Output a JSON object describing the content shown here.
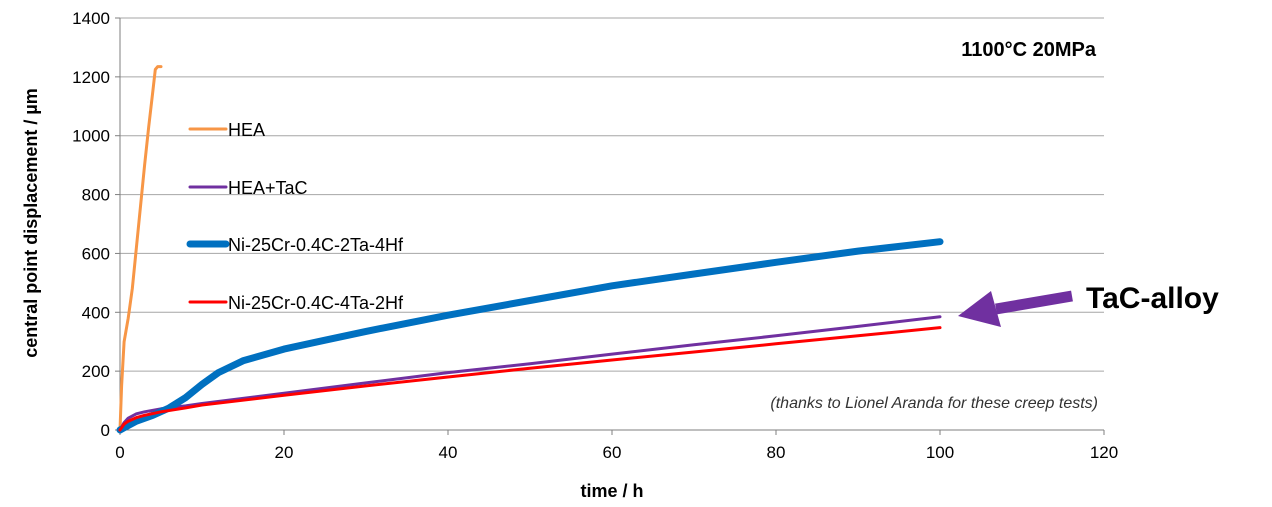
{
  "chart_data": {
    "type": "line",
    "xlabel": "time / h",
    "ylabel": "central point displacement / µm",
    "xlim": [
      0,
      120
    ],
    "ylim": [
      0,
      1400
    ],
    "xticks": [
      0,
      20,
      40,
      60,
      80,
      100,
      120
    ],
    "yticks": [
      0,
      200,
      400,
      600,
      800,
      1000,
      1200,
      1400
    ],
    "grid": "horizontal",
    "legend_position": "left",
    "series": [
      {
        "name": "HEA",
        "color": "#f79646",
        "x": [
          0,
          0.2,
          0.5,
          1,
          1.5,
          2,
          2.5,
          3,
          3.5,
          4,
          4.3,
          4.6,
          5
        ],
        "y": [
          0,
          150,
          300,
          380,
          480,
          620,
          760,
          900,
          1030,
          1150,
          1225,
          1235,
          1235
        ]
      },
      {
        "name": "HEA+TaC",
        "color": "#7030a0",
        "x": [
          0,
          0.5,
          1,
          2,
          3,
          5,
          8,
          10,
          20,
          30,
          40,
          50,
          60,
          70,
          80,
          90,
          100
        ],
        "y": [
          0,
          25,
          40,
          55,
          62,
          72,
          82,
          90,
          125,
          160,
          195,
          225,
          258,
          290,
          320,
          352,
          385
        ]
      },
      {
        "name": "Ni-25Cr-0.4C-2Ta-4Hf",
        "color": "#0070c0",
        "x": [
          0,
          1,
          2,
          4,
          6,
          8,
          10,
          12,
          15,
          20,
          25,
          30,
          40,
          50,
          60,
          70,
          80,
          90,
          100
        ],
        "y": [
          0,
          15,
          30,
          50,
          75,
          110,
          155,
          195,
          235,
          275,
          305,
          335,
          390,
          440,
          490,
          530,
          570,
          608,
          640
        ]
      },
      {
        "name": "Ni-25Cr-0.4C-4Ta-2Hf",
        "color": "#ff0000",
        "x": [
          0,
          0.5,
          1,
          2,
          3,
          5,
          8,
          10,
          20,
          30,
          40,
          50,
          60,
          70,
          80,
          90,
          100
        ],
        "y": [
          0,
          20,
          30,
          42,
          50,
          62,
          75,
          85,
          118,
          150,
          180,
          210,
          238,
          265,
          293,
          320,
          348
        ]
      }
    ],
    "annotations": {
      "condition": "1100°C 20MPa",
      "credit": "(thanks to Lionel Aranda for these creep tests)",
      "callout": "TaC-alloy",
      "callout_color": "#7030a0"
    }
  }
}
